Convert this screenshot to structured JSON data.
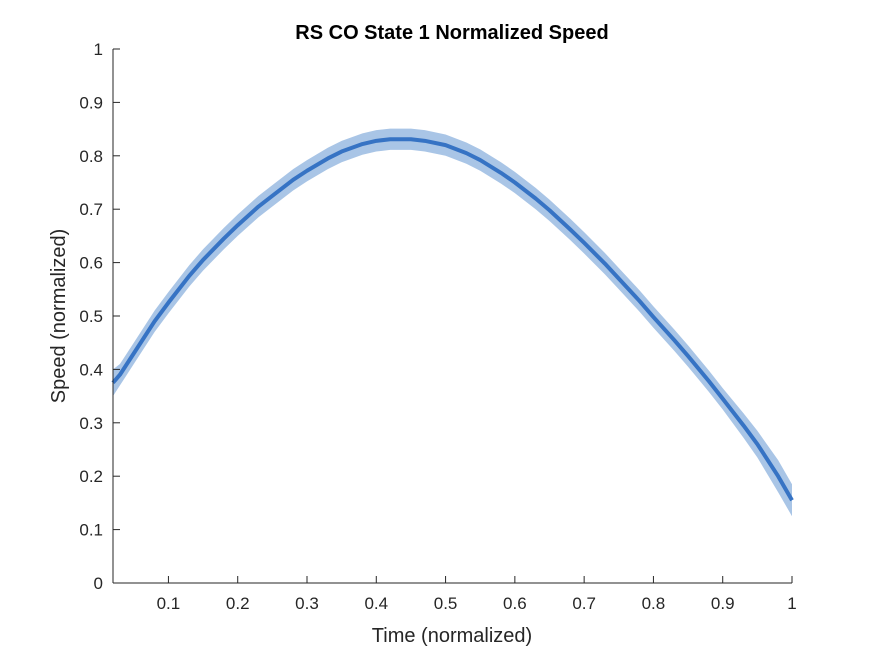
{
  "chart_data": {
    "type": "line",
    "title": "RS  CO State 1 Normalized Speed",
    "xlabel": "Time (normalized)",
    "ylabel": "Speed (normalized)",
    "xlim": [
      0.02,
      1.0
    ],
    "ylim": [
      0,
      1
    ],
    "x_ticks": [
      0.1,
      0.2,
      0.3,
      0.4,
      0.5,
      0.6,
      0.7,
      0.8,
      0.9,
      1
    ],
    "x_tick_labels": [
      "0.1",
      "0.2",
      "0.3",
      "0.4",
      "0.5",
      "0.6",
      "0.7",
      "0.8",
      "0.9",
      "1"
    ],
    "y_ticks": [
      0,
      0.1,
      0.2,
      0.3,
      0.4,
      0.5,
      0.6,
      0.7,
      0.8,
      0.9,
      1
    ],
    "y_tick_labels": [
      "0",
      "0.1",
      "0.2",
      "0.3",
      "0.4",
      "0.5",
      "0.6",
      "0.7",
      "0.8",
      "0.9",
      "1"
    ],
    "grid": false,
    "line_color": "#3673C4",
    "band_color": "#A9C5E6",
    "series": [
      {
        "x": [
          0.02,
          0.03,
          0.05,
          0.08,
          0.1,
          0.13,
          0.15,
          0.18,
          0.2,
          0.23,
          0.25,
          0.28,
          0.3,
          0.33,
          0.35,
          0.38,
          0.4,
          0.42,
          0.45,
          0.47,
          0.5,
          0.53,
          0.55,
          0.58,
          0.6,
          0.63,
          0.65,
          0.68,
          0.7,
          0.73,
          0.75,
          0.78,
          0.8,
          0.83,
          0.85,
          0.88,
          0.9,
          0.93,
          0.95,
          0.98,
          1.0
        ],
        "y": [
          0.375,
          0.39,
          0.43,
          0.49,
          0.525,
          0.575,
          0.605,
          0.645,
          0.67,
          0.705,
          0.725,
          0.755,
          0.772,
          0.795,
          0.808,
          0.822,
          0.828,
          0.831,
          0.831,
          0.828,
          0.82,
          0.805,
          0.792,
          0.768,
          0.75,
          0.72,
          0.698,
          0.662,
          0.637,
          0.598,
          0.57,
          0.528,
          0.498,
          0.455,
          0.425,
          0.378,
          0.345,
          0.295,
          0.26,
          0.2,
          0.155
        ],
        "ci_lower": [
          0.35,
          0.37,
          0.41,
          0.47,
          0.505,
          0.555,
          0.585,
          0.625,
          0.65,
          0.685,
          0.705,
          0.735,
          0.752,
          0.775,
          0.788,
          0.802,
          0.808,
          0.811,
          0.811,
          0.808,
          0.8,
          0.785,
          0.772,
          0.748,
          0.73,
          0.7,
          0.678,
          0.642,
          0.617,
          0.578,
          0.55,
          0.508,
          0.478,
          0.435,
          0.405,
          0.358,
          0.325,
          0.272,
          0.235,
          0.17,
          0.125
        ],
        "ci_upper": [
          0.4,
          0.41,
          0.45,
          0.51,
          0.545,
          0.595,
          0.625,
          0.665,
          0.69,
          0.725,
          0.745,
          0.775,
          0.792,
          0.815,
          0.828,
          0.842,
          0.848,
          0.851,
          0.851,
          0.848,
          0.84,
          0.825,
          0.812,
          0.788,
          0.77,
          0.74,
          0.718,
          0.682,
          0.657,
          0.618,
          0.59,
          0.548,
          0.518,
          0.475,
          0.445,
          0.398,
          0.365,
          0.318,
          0.285,
          0.23,
          0.185
        ]
      }
    ]
  }
}
